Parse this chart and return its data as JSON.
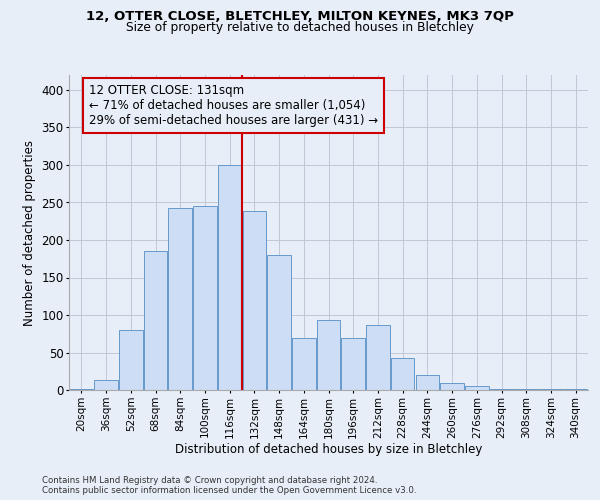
{
  "title1": "12, OTTER CLOSE, BLETCHLEY, MILTON KEYNES, MK3 7QP",
  "title2": "Size of property relative to detached houses in Bletchley",
  "xlabel": "Distribution of detached houses by size in Bletchley",
  "ylabel": "Number of detached properties",
  "footnote1": "Contains HM Land Registry data © Crown copyright and database right 2024.",
  "footnote2": "Contains public sector information licensed under the Open Government Licence v3.0.",
  "categories": [
    "20sqm",
    "36sqm",
    "52sqm",
    "68sqm",
    "84sqm",
    "100sqm",
    "116sqm",
    "132sqm",
    "148sqm",
    "164sqm",
    "180sqm",
    "196sqm",
    "212sqm",
    "228sqm",
    "244sqm",
    "260sqm",
    "276sqm",
    "292sqm",
    "308sqm",
    "324sqm",
    "340sqm"
  ],
  "values": [
    2,
    13,
    80,
    185,
    242,
    245,
    300,
    238,
    180,
    70,
    93,
    70,
    87,
    43,
    20,
    10,
    5,
    2,
    1,
    1,
    1
  ],
  "bar_color": "#ccddf5",
  "bar_edge_color": "#6699cc",
  "vline_index": 7,
  "vline_color": "#cc0000",
  "annot_line1": "12 OTTER CLOSE: 131sqm",
  "annot_line2": "← 71% of detached houses are smaller (1,054)",
  "annot_line3": "29% of semi-detached houses are larger (431) →",
  "annot_box_color": "#cc0000",
  "bg_color": "#e8eef8",
  "grid_color": "#c0c8d8",
  "ylim": [
    0,
    420
  ],
  "yticks": [
    0,
    50,
    100,
    150,
    200,
    250,
    300,
    350,
    400
  ]
}
